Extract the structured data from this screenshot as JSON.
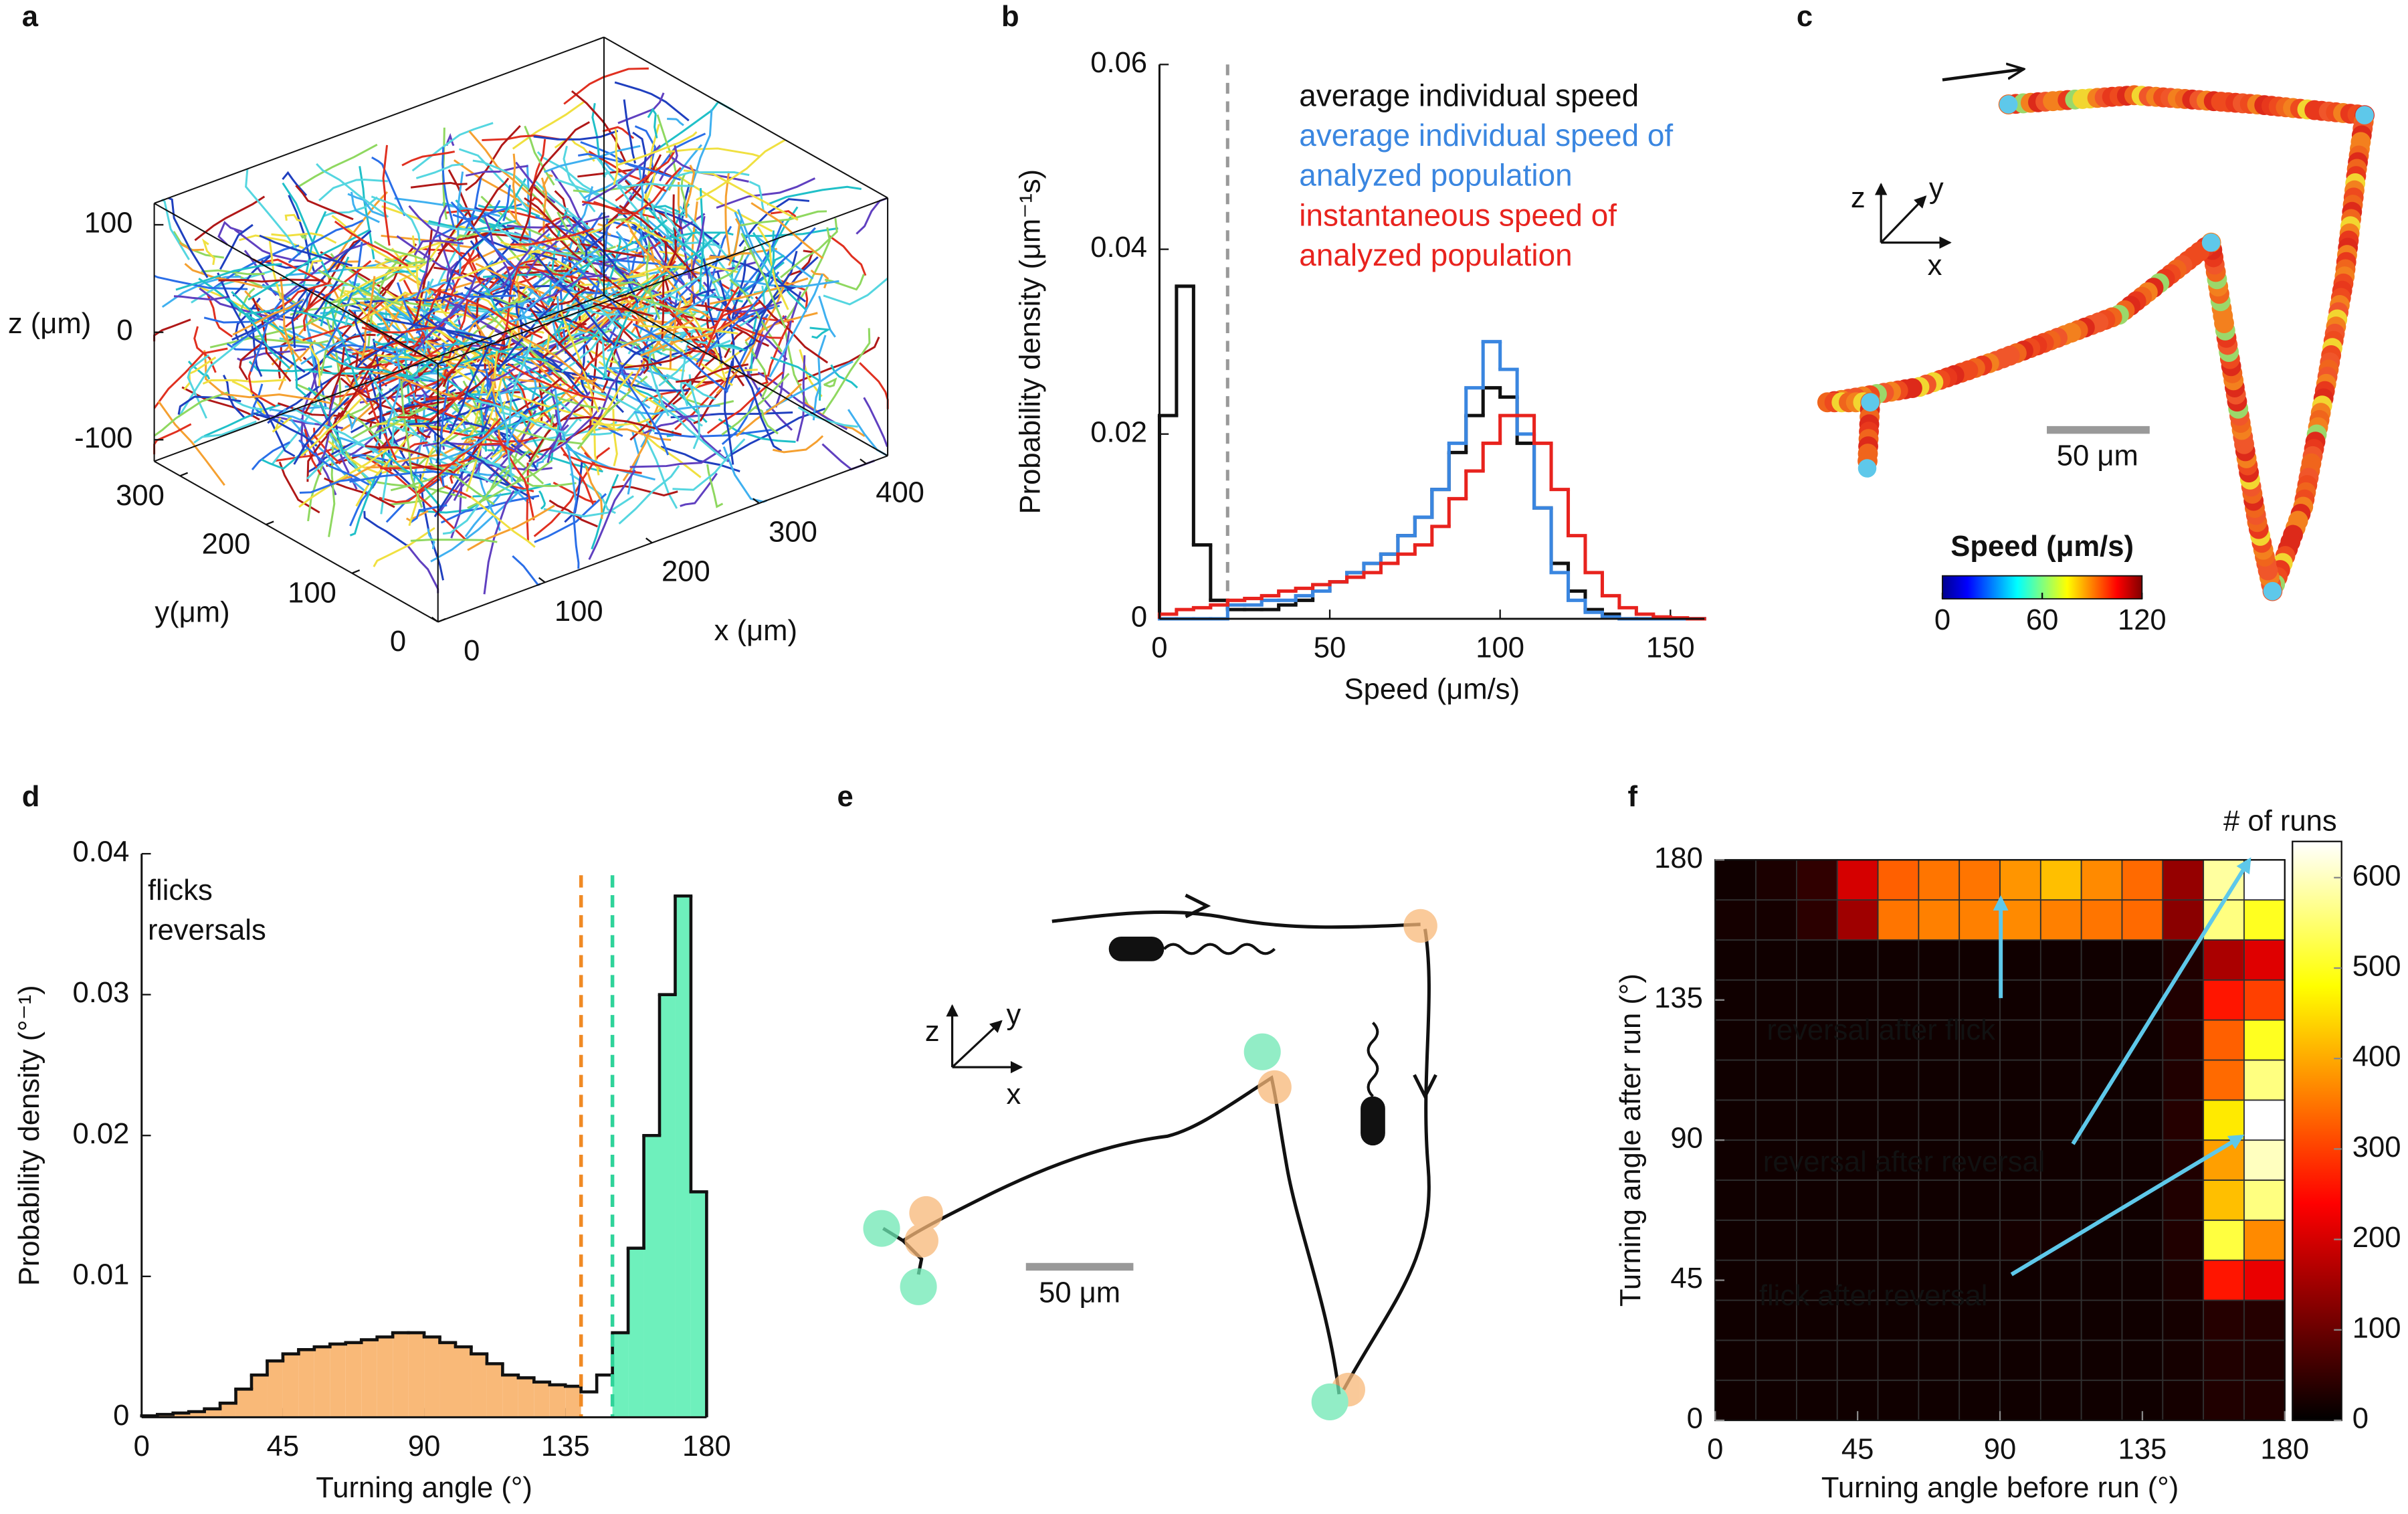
{
  "chart_data": [
    {
      "type": "trajectory3d",
      "panel": "a",
      "xlabel": "x (μm)",
      "ylabel": "y(μm)",
      "zlabel": "z (μm)",
      "xlim": [
        0,
        420
      ],
      "ylim": [
        0,
        330
      ],
      "zlim": [
        -120,
        120
      ],
      "xticks": [
        0,
        100,
        200,
        300,
        400
      ],
      "yticks": [
        0,
        100,
        200,
        300
      ],
      "zticks": [
        -100,
        0,
        100
      ]
    },
    {
      "type": "histogram",
      "panel": "b",
      "xlabel": "Speed (μm/s)",
      "ylabel": "Probability density (μm⁻¹s)",
      "xlim": [
        0,
        160
      ],
      "ylim": [
        0,
        0.06
      ],
      "xticks": [
        0,
        50,
        100,
        150
      ],
      "yticks": [
        0,
        0.02,
        0.04,
        0.06
      ],
      "threshold": 20,
      "threshold_color": "#999999",
      "bins": [
        0,
        5,
        10,
        15,
        20,
        25,
        30,
        35,
        40,
        45,
        50,
        55,
        60,
        65,
        70,
        75,
        80,
        85,
        90,
        95,
        100,
        105,
        110,
        115,
        120,
        125,
        130,
        135,
        140,
        145,
        150,
        155,
        160
      ],
      "series": [
        {
          "name": "average individual speed",
          "color": "#111111",
          "values": [
            0.022,
            0.036,
            0.008,
            0.002,
            0.001,
            0.001,
            0.001,
            0.0015,
            0.002,
            0.003,
            0.004,
            0.005,
            0.006,
            0.007,
            0.009,
            0.011,
            0.014,
            0.018,
            0.022,
            0.025,
            0.024,
            0.019,
            0.012,
            0.006,
            0.003,
            0.001,
            0.0005,
            0,
            0,
            0,
            0,
            0
          ]
        },
        {
          "name": "average individual speed of analyzed population",
          "color": "#3a86e0",
          "values": [
            0,
            0,
            0,
            0,
            0.0015,
            0.0015,
            0.002,
            0.002,
            0.0025,
            0.003,
            0.004,
            0.005,
            0.006,
            0.007,
            0.009,
            0.011,
            0.014,
            0.019,
            0.025,
            0.03,
            0.027,
            0.02,
            0.012,
            0.005,
            0.002,
            0.0007,
            0.0002,
            0,
            0,
            0,
            0,
            0
          ]
        },
        {
          "name": "instantaneous speed of analyzed population",
          "color": "#e8231e",
          "values": [
            0.0005,
            0.001,
            0.0012,
            0.0015,
            0.002,
            0.0022,
            0.0025,
            0.003,
            0.0033,
            0.0037,
            0.004,
            0.0045,
            0.005,
            0.006,
            0.007,
            0.008,
            0.01,
            0.013,
            0.016,
            0.019,
            0.022,
            0.022,
            0.019,
            0.014,
            0.009,
            0.005,
            0.0025,
            0.0012,
            0.0005,
            0.0002,
            0.0001,
            0
          ]
        }
      ]
    },
    {
      "type": "trajectory",
      "panel": "c",
      "axes_labels": [
        "z",
        "y",
        "x"
      ],
      "scale_bar": "50 μm",
      "colorbar_title": "Speed (μm/s)",
      "clim": [
        0,
        120
      ],
      "cticks": [
        0,
        60,
        120
      ]
    },
    {
      "type": "histogram",
      "panel": "d",
      "xlabel": "Turning angle (°)",
      "ylabel": "Probability density (°⁻¹)",
      "xlim": [
        0,
        180
      ],
      "ylim": [
        0,
        0.04
      ],
      "xticks": [
        0,
        45,
        90,
        135,
        180
      ],
      "yticks": [
        0,
        0.01,
        0.02,
        0.03,
        0.04
      ],
      "bins": [
        0,
        5,
        10,
        15,
        20,
        25,
        30,
        35,
        40,
        45,
        50,
        55,
        60,
        65,
        70,
        75,
        80,
        85,
        90,
        95,
        100,
        105,
        110,
        115,
        120,
        125,
        130,
        135,
        140,
        145,
        150,
        155,
        160,
        165,
        170,
        175,
        180
      ],
      "values": [
        0.0001,
        0.0002,
        0.0003,
        0.0004,
        0.0006,
        0.001,
        0.002,
        0.003,
        0.004,
        0.0045,
        0.0048,
        0.005,
        0.0052,
        0.0053,
        0.0055,
        0.0057,
        0.006,
        0.006,
        0.0057,
        0.0053,
        0.005,
        0.0045,
        0.0038,
        0.003,
        0.0028,
        0.0025,
        0.0023,
        0.0022,
        0.0018,
        0.003,
        0.006,
        0.012,
        0.02,
        0.03,
        0.037,
        0.016
      ],
      "color": "#111111",
      "legend": [
        {
          "name": "flicks",
          "color": "#f08a24",
          "fill": "#f9b978",
          "threshold": 140
        },
        {
          "name": "reversals",
          "color": "#2fd39a",
          "fill": "#6ef0bc",
          "threshold": 150
        }
      ]
    },
    {
      "type": "schematic",
      "panel": "e",
      "axes_labels": [
        "z",
        "y",
        "x"
      ],
      "scale_bar": "50 μm"
    },
    {
      "type": "heatmap",
      "panel": "f",
      "xlabel": "Turning angle before run (°)",
      "ylabel": "Turning angle after run (°)",
      "xlim": [
        0,
        180
      ],
      "ylim": [
        0,
        180
      ],
      "xticks": [
        0,
        45,
        90,
        135,
        180
      ],
      "yticks": [
        0,
        45,
        90,
        135,
        180
      ],
      "colorbar_title": "# of runs",
      "zlim": [
        0,
        640
      ],
      "zticks": [
        0,
        100,
        200,
        300,
        400,
        500,
        600
      ],
      "annotations": [
        "reversal after flick",
        "reversal after reversal",
        "flick after reversal"
      ],
      "z": [
        [
          15,
          15,
          15,
          15,
          15,
          15,
          15,
          15,
          15,
          15,
          15,
          20,
          30,
          30
        ],
        [
          15,
          15,
          15,
          15,
          15,
          15,
          15,
          15,
          15,
          15,
          15,
          20,
          30,
          30
        ],
        [
          15,
          15,
          15,
          15,
          15,
          15,
          15,
          15,
          15,
          15,
          15,
          20,
          35,
          35
        ],
        [
          15,
          15,
          15,
          15,
          15,
          15,
          15,
          15,
          15,
          15,
          15,
          25,
          260,
          220
        ],
        [
          15,
          15,
          15,
          15,
          15,
          15,
          15,
          20,
          20,
          15,
          15,
          30,
          520,
          370
        ],
        [
          15,
          15,
          15,
          15,
          15,
          15,
          15,
          15,
          15,
          15,
          15,
          30,
          420,
          560
        ],
        [
          15,
          15,
          15,
          15,
          15,
          15,
          15,
          15,
          15,
          15,
          15,
          30,
          390,
          600
        ],
        [
          15,
          15,
          15,
          15,
          15,
          15,
          15,
          15,
          15,
          15,
          15,
          35,
          460,
          660
        ],
        [
          15,
          15,
          15,
          15,
          15,
          15,
          15,
          15,
          15,
          15,
          15,
          30,
          340,
          560
        ],
        [
          15,
          15,
          15,
          15,
          15,
          15,
          15,
          15,
          15,
          15,
          15,
          30,
          330,
          500
        ],
        [
          15,
          15,
          15,
          15,
          15,
          15,
          15,
          15,
          15,
          15,
          15,
          30,
          260,
          300
        ],
        [
          15,
          15,
          15,
          15,
          15,
          15,
          15,
          15,
          15,
          15,
          15,
          30,
          160,
          210
        ],
        [
          20,
          20,
          40,
          150,
          350,
          360,
          360,
          370,
          360,
          350,
          340,
          130,
          560,
          500
        ],
        [
          15,
          25,
          45,
          200,
          330,
          350,
          350,
          380,
          420,
          370,
          340,
          140,
          580,
          650
        ]
      ]
    }
  ]
}
